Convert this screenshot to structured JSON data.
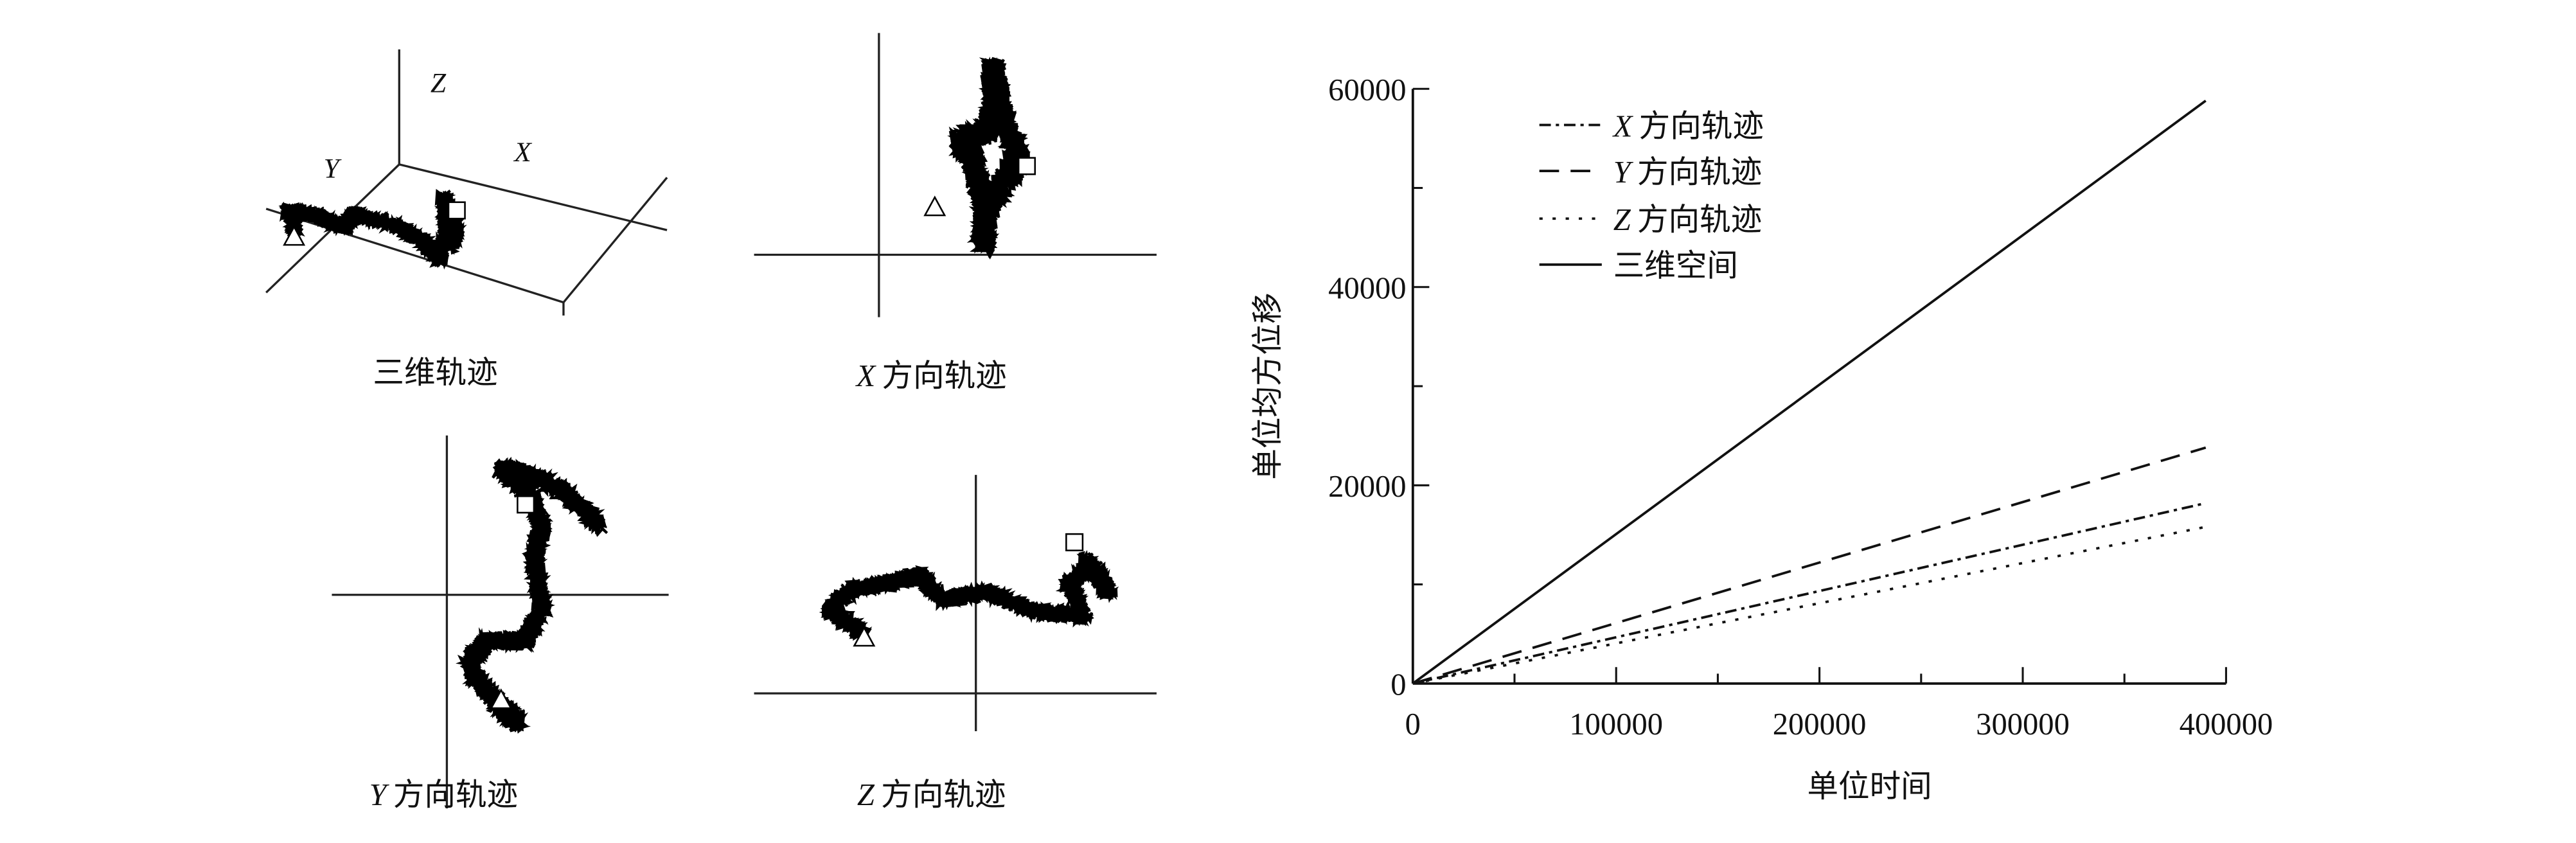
{
  "panels": {
    "three_d": {
      "caption": "三维轨迹",
      "axis_x": "X",
      "axis_y": "Y",
      "axis_z": "Z"
    },
    "x_dir": {
      "caption_letter": "X",
      "caption": "方向轨迹"
    },
    "y_dir": {
      "caption_letter": "Y",
      "caption": "方向轨迹"
    },
    "z_dir": {
      "caption_letter": "Z",
      "caption": "方向轨迹"
    },
    "start_marker": "triangle",
    "end_marker": "square"
  },
  "chart_data": {
    "type": "line",
    "xlabel": "单位时间",
    "ylabel": "单位均方位移",
    "xlim": [
      0,
      400000
    ],
    "ylim": [
      0,
      60000
    ],
    "xticks": [
      "0",
      "100000",
      "200000",
      "300000",
      "400000"
    ],
    "yticks": [
      "0",
      "20000",
      "40000",
      "60000"
    ],
    "x_minor_step": 50000,
    "y_minor_step": 10000,
    "grid": false,
    "legend_position": "top-left",
    "series": [
      {
        "name_letter": "X",
        "name": "方向轨迹",
        "style": "dash-dot",
        "x": [
          0,
          390000
        ],
        "y": [
          0,
          18200
        ]
      },
      {
        "name_letter": "Y",
        "name": "方向轨迹",
        "style": "dashed",
        "x": [
          0,
          390000
        ],
        "y": [
          0,
          23800
        ]
      },
      {
        "name_letter": "Z",
        "name": "方向轨迹",
        "style": "dotted",
        "x": [
          0,
          390000
        ],
        "y": [
          0,
          15800
        ]
      },
      {
        "name_letter": "",
        "name": "三维空间",
        "style": "solid",
        "x": [
          0,
          390000
        ],
        "y": [
          0,
          58800
        ]
      }
    ],
    "color": "#111111"
  }
}
